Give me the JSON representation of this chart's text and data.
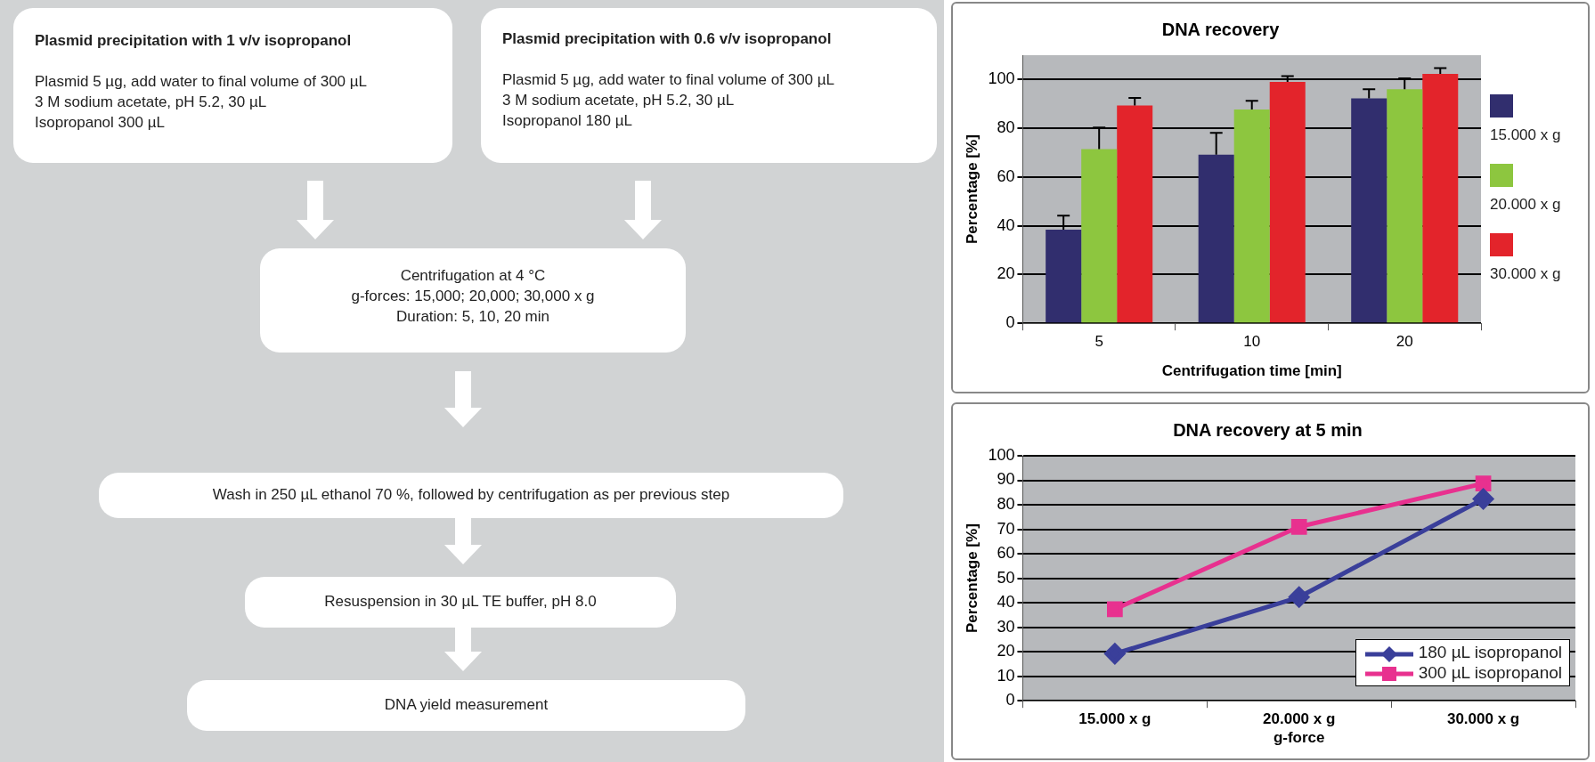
{
  "chart_data": [
    {
      "type": "other",
      "annotations": [
        "Plasmid precipitation with 1 v/v isopropanol\n\nPlasmid 5 µg, add water to final volume of 300 µL\n3 M sodium acetate, pH 5.2, 30 µL\nIsopropanol 300 µL",
        "Plasmid precipitation with 0.6 v/v isopropanol\n\nPlasmid 5 µg, add water to final volume of 300 µL\n3 M sodium acetate, pH 5.2, 30 µL\nIsopropanol 180 µL",
        "Centrifugation at 4 °C\ng-forces: 15,000; 20,000; 30,000 x g\nDuration: 5, 10, 20 min",
        "Wash in 250 µL ethanol 70 %, followed by centrifugation as per previous step",
        "Resuspension in 30 µL TE buffer, pH 8.0",
        "DNA yield measurement"
      ]
    },
    {
      "type": "bar",
      "title": "DNA recovery",
      "xlabel": "Centrifugation time [min]",
      "ylabel": "Percentage [%]",
      "categories": [
        "5",
        "10",
        "20"
      ],
      "series": [
        {
          "name": "15.000 x g",
          "color": "#312e6e",
          "values": [
            38.4,
            69.2,
            92.3
          ],
          "errors": [
            [
              38.4,
              44.2
            ],
            [
              69.2,
              78.1
            ],
            [
              92.3,
              96
            ]
          ]
        },
        {
          "name": "20.000 x g",
          "color": "#8dc63f",
          "values": [
            71.5,
            87.7,
            96
          ],
          "errors": [
            [
              71.5,
              80.3
            ],
            [
              87.7,
              91.3
            ],
            [
              96,
              100.5
            ]
          ]
        },
        {
          "name": "30.000 x g",
          "color": "#e3242b",
          "values": [
            89.4,
            99,
            102.3
          ],
          "errors": [
            [
              89.4,
              92.5
            ],
            [
              99,
              101.4
            ],
            [
              102.3,
              104.7
            ]
          ]
        }
      ],
      "ylim": [
        0,
        110
      ],
      "yticks": [
        0,
        20,
        40,
        60,
        80,
        100
      ],
      "grid": "y",
      "legend": "right"
    },
    {
      "type": "line",
      "title": "DNA recovery at 5 min",
      "xlabel": "g-force",
      "ylabel": "Percentage [%]",
      "categories": [
        "15.000 x g",
        "20.000 x g",
        "30.000 x g"
      ],
      "series": [
        {
          "name": "180 µL isopropanol",
          "color": "#3a3f9a",
          "values": [
            19.2,
            42.3,
            82.4
          ],
          "marker": "diamond"
        },
        {
          "name": "300 µL isopropanol",
          "color": "#e8318f",
          "values": [
            37.4,
            71,
            88.7
          ],
          "marker": "square"
        }
      ],
      "ylim": [
        0,
        100
      ],
      "yticks": [
        0,
        10,
        20,
        30,
        40,
        50,
        60,
        70,
        80,
        90,
        100
      ],
      "grid": "y",
      "legend": "bottom right",
      "line_style": "solid"
    }
  ]
}
